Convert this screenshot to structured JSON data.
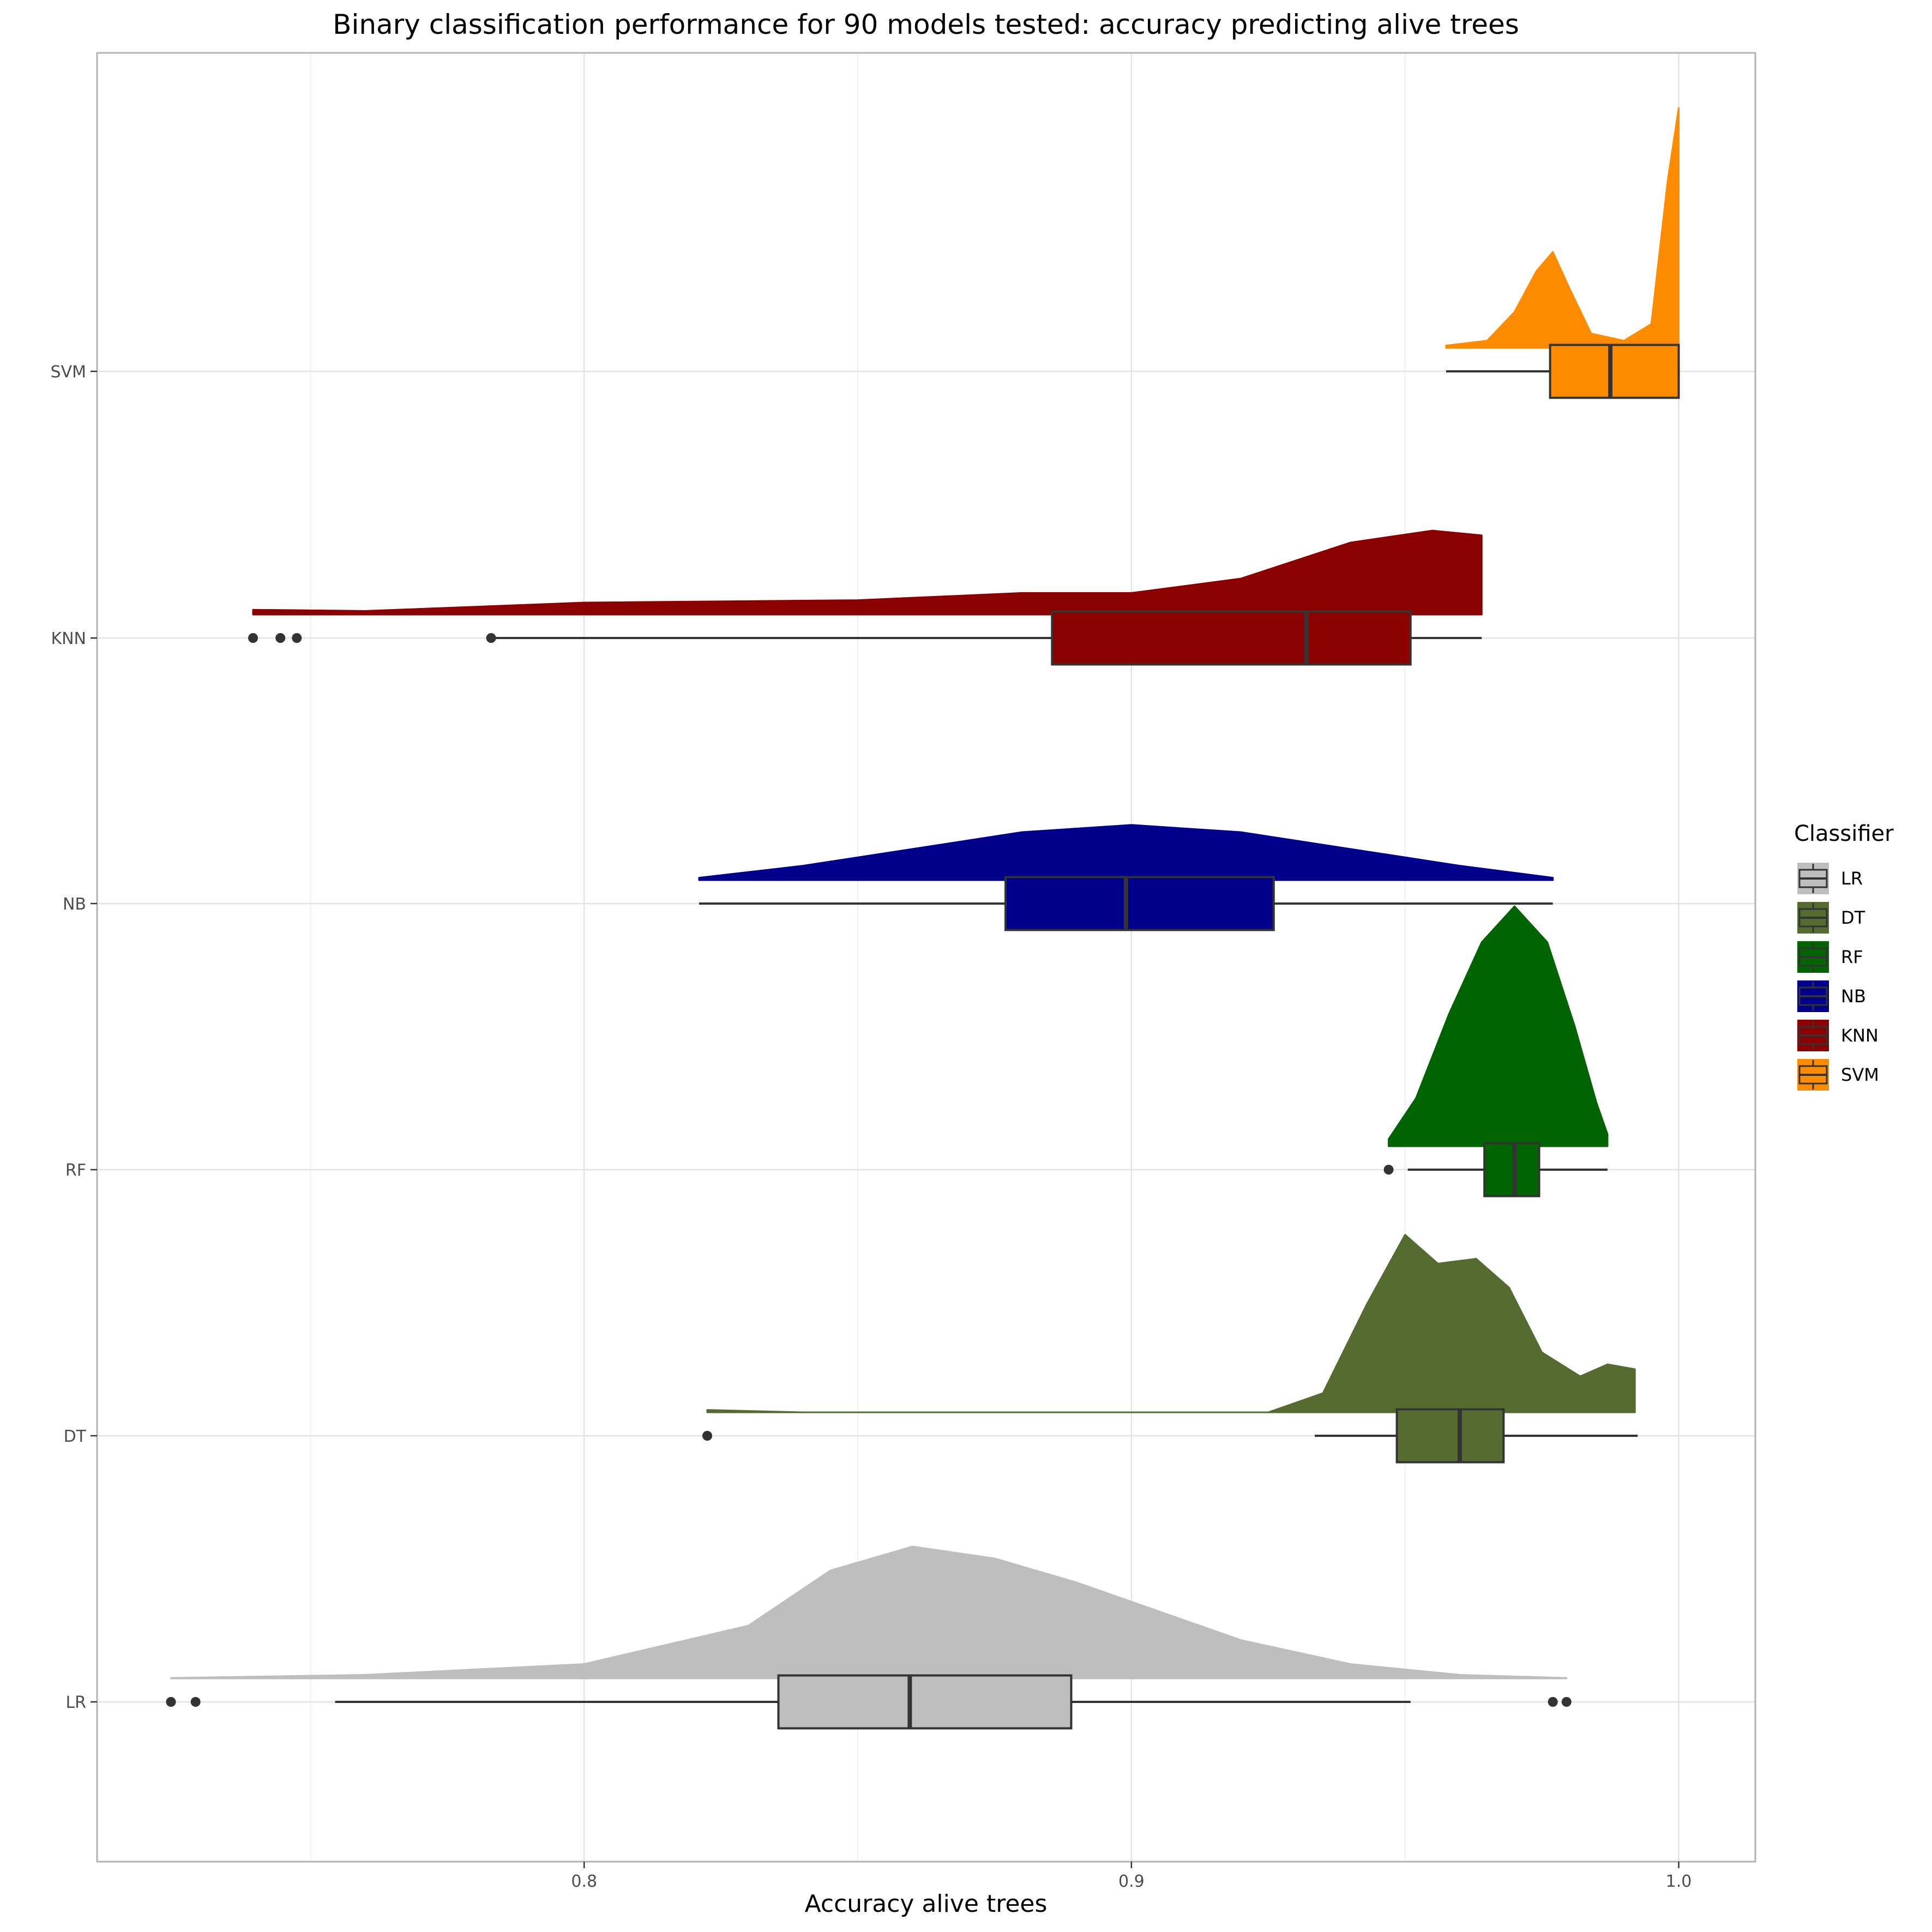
{
  "chart_data": {
    "type": "box",
    "subtype": "raincloud (half-violin density + boxplot, horizontal)",
    "title": "Binary classification performance for 90 models tested: accuracy predicting alive trees",
    "xlabel": "Accuracy alive trees",
    "ylabel": "",
    "xlim": [
      0.711,
      1.014
    ],
    "x_ticks": [
      0.8,
      0.9,
      1.0
    ],
    "x_tick_labels": [
      "0.8",
      "0.9",
      "1.0"
    ],
    "categories": [
      "LR",
      "DT",
      "RF",
      "NB",
      "KNN",
      "SVM"
    ],
    "grid": true,
    "legend": {
      "title": "Classifier",
      "position": "right",
      "entries": [
        "LR",
        "DT",
        "RF",
        "NB",
        "KNN",
        "SVM"
      ]
    },
    "series": [
      {
        "name": "LR",
        "color": "#bebebe",
        "whisker_low": 0.7545,
        "q1": 0.8355,
        "median": 0.8595,
        "q3": 0.889,
        "whisker_high": 0.951,
        "outliers": [
          0.7245,
          0.729,
          0.977,
          0.9795
        ],
        "density": [
          [
            0.7245,
            0.002
          ],
          [
            0.76,
            0.015
          ],
          [
            0.8,
            0.06
          ],
          [
            0.83,
            0.22
          ],
          [
            0.845,
            0.45
          ],
          [
            0.86,
            0.55
          ],
          [
            0.875,
            0.5
          ],
          [
            0.89,
            0.4
          ],
          [
            0.905,
            0.28
          ],
          [
            0.92,
            0.16
          ],
          [
            0.94,
            0.06
          ],
          [
            0.96,
            0.015
          ],
          [
            0.9795,
            0.002
          ]
        ]
      },
      {
        "name": "DT",
        "color": "#556b2f",
        "whisker_low": 0.9335,
        "q1": 0.9485,
        "median": 0.96,
        "q3": 0.968,
        "whisker_high": 0.9925,
        "outliers": [
          0.8225
        ],
        "density": [
          [
            0.8225,
            0.01
          ],
          [
            0.84,
            0.0
          ],
          [
            0.925,
            0.0
          ],
          [
            0.935,
            0.08
          ],
          [
            0.943,
            0.45
          ],
          [
            0.95,
            0.74
          ],
          [
            0.956,
            0.62
          ],
          [
            0.963,
            0.64
          ],
          [
            0.969,
            0.52
          ],
          [
            0.975,
            0.25
          ],
          [
            0.982,
            0.15
          ],
          [
            0.987,
            0.2
          ],
          [
            0.992,
            0.18
          ]
        ]
      },
      {
        "name": "RF",
        "color": "#006400",
        "whisker_low": 0.9505,
        "q1": 0.9645,
        "median": 0.97,
        "q3": 0.9745,
        "whisker_high": 0.987,
        "outliers": [
          0.947
        ],
        "density": [
          [
            0.947,
            0.03
          ],
          [
            0.952,
            0.2
          ],
          [
            0.958,
            0.55
          ],
          [
            0.964,
            0.85
          ],
          [
            0.97,
            1.0
          ],
          [
            0.976,
            0.85
          ],
          [
            0.981,
            0.5
          ],
          [
            0.985,
            0.18
          ],
          [
            0.987,
            0.05
          ]
        ]
      },
      {
        "name": "NB",
        "color": "#00008b",
        "whisker_low": 0.821,
        "q1": 0.877,
        "median": 0.899,
        "q3": 0.926,
        "whisker_high": 0.977,
        "outliers": [],
        "density": [
          [
            0.821,
            0.01
          ],
          [
            0.84,
            0.06
          ],
          [
            0.86,
            0.13
          ],
          [
            0.88,
            0.2
          ],
          [
            0.9,
            0.23
          ],
          [
            0.92,
            0.2
          ],
          [
            0.94,
            0.13
          ],
          [
            0.96,
            0.06
          ],
          [
            0.977,
            0.01
          ]
        ]
      },
      {
        "name": "KNN",
        "color": "#8b0000",
        "whisker_low": 0.783,
        "q1": 0.8855,
        "median": 0.932,
        "q3": 0.951,
        "whisker_high": 0.964,
        "outliers": [
          0.7395,
          0.7445,
          0.7475,
          0.783
        ],
        "density": [
          [
            0.7395,
            0.02
          ],
          [
            0.76,
            0.015
          ],
          [
            0.8,
            0.05
          ],
          [
            0.85,
            0.06
          ],
          [
            0.88,
            0.09
          ],
          [
            0.9,
            0.09
          ],
          [
            0.92,
            0.15
          ],
          [
            0.94,
            0.3
          ],
          [
            0.955,
            0.35
          ],
          [
            0.964,
            0.33
          ]
        ]
      },
      {
        "name": "SVM",
        "color": "#ff8c00",
        "whisker_low": 0.9575,
        "q1": 0.9765,
        "median": 0.9875,
        "q3": 1.0,
        "whisker_high": 1.0,
        "outliers": [],
        "density": [
          [
            0.9575,
            0.01
          ],
          [
            0.965,
            0.03
          ],
          [
            0.97,
            0.15
          ],
          [
            0.974,
            0.32
          ],
          [
            0.977,
            0.4
          ],
          [
            0.98,
            0.25
          ],
          [
            0.984,
            0.06
          ],
          [
            0.99,
            0.03
          ],
          [
            0.995,
            0.1
          ],
          [
            0.998,
            0.7
          ],
          [
            1.0,
            1.0
          ]
        ]
      }
    ]
  }
}
